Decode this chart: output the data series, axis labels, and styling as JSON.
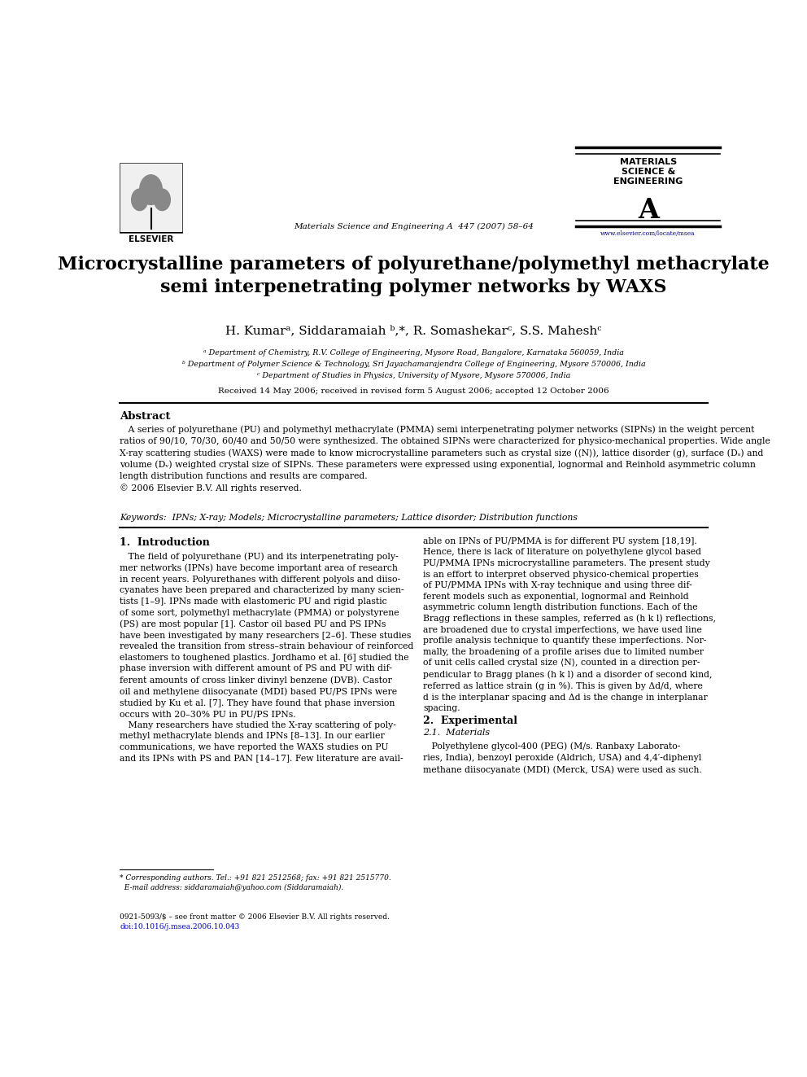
{
  "bg_color": "#ffffff",
  "page_width": 9.92,
  "page_height": 13.23,
  "title": "Microcrystalline parameters of polyurethane/polymethyl methacrylate\nsemi interpenetrating polymer networks by WAXS",
  "authors": "H. Kumarᵃ, Siddaramaiah ᵇ,*, R. Somashekarᶜ, S.S. Maheshᶜ",
  "affil_a": "ᵃ Department of Chemistry, R.V. College of Engineering, Mysore Road, Bangalore, Karnataka 560059, India",
  "affil_b": "ᵇ Department of Polymer Science & Technology, Sri Jayachamarajendra College of Engineering, Mysore 570006, India",
  "affil_c": "ᶜ Department of Studies in Physics, University of Mysore, Mysore 570006, India",
  "received": "Received 14 May 2006; received in revised form 5 August 2006; accepted 12 October 2006",
  "journal_ref": "Materials Science and Engineering A  447 (2007) 58–64",
  "elsevier_url": "www.elsevier.com/locate/msea",
  "abstract_title": "Abstract",
  "abstract_text": "   A series of polyurethane (PU) and polymethyl methacrylate (PMMA) semi interpenetrating polymer networks (SIPNs) in the weight percent\nratios of 90/10, 70/30, 60/40 and 50/50 were synthesized. The obtained SIPNs were characterized for physico-mechanical properties. Wide angle\nX-ray scattering studies (WAXS) were made to know microcrystalline parameters such as crystal size (⟨N⟩), lattice disorder (g), surface (Dₛ) and\nvolume (Dᵥ) weighted crystal size of SIPNs. These parameters were expressed using exponential, lognormal and Reinhold asymmetric column\nlength distribution functions and results are compared.\n© 2006 Elsevier B.V. All rights reserved.",
  "keywords": "Keywords:  IPNs; X-ray; Models; Microcrystalline parameters; Lattice disorder; Distribution functions",
  "section1_title": "1.  Introduction",
  "section1_left": "   The field of polyurethane (PU) and its interpenetrating poly-\nmer networks (IPNs) have become important area of research\nin recent years. Polyurethanes with different polyols and diiso-\ncyanates have been prepared and characterized by many scien-\ntists [1–9]. IPNs made with elastomeric PU and rigid plastic\nof some sort, polymethyl methacrylate (PMMA) or polystyrene\n(PS) are most popular [1]. Castor oil based PU and PS IPNs\nhave been investigated by many researchers [2–6]. These studies\nrevealed the transition from stress–strain behaviour of reinforced\nelastomers to toughened plastics. Jordhamo et al. [6] studied the\nphase inversion with different amount of PS and PU with dif-\nferent amounts of cross linker divinyl benzene (DVB). Castor\noil and methylene diisocyanate (MDI) based PU/PS IPNs were\nstudied by Ku et al. [7]. They have found that phase inversion\noccurs with 20–30% PU in PU/PS IPNs.\n   Many researchers have studied the X-ray scattering of poly-\nmethyl methacrylate blends and IPNs [8–13]. In our earlier\ncommunications, we have reported the WAXS studies on PU\nand its IPNs with PS and PAN [14–17]. Few literature are avail-",
  "section1_right": "able on IPNs of PU/PMMA is for different PU system [18,19].\nHence, there is lack of literature on polyethylene glycol based\nPU/PMMA IPNs microcrystalline parameters. The present study\nis an effort to interpret observed physico-chemical properties\nof PU/PMMA IPNs with X-ray technique and using three dif-\nferent models such as exponential, lognormal and Reinhold\nasymmetric column length distribution functions. Each of the\nBragg reflections in these samples, referred as (h k l) reflections,\nare broadened due to crystal imperfections, we have used line\nprofile analysis technique to quantify these imperfections. Nor-\nmally, the broadening of a profile arises due to limited number\nof unit cells called crystal size ⟨N⟩, counted in a direction per-\npendicular to Bragg planes (h k l) and a disorder of second kind,\nreferred as lattice strain (g in %). This is given by Δd/d, where\nd is the interplanar spacing and Δd is the change in interplanar\nspacing.",
  "section2_title": "2.  Experimental",
  "section21_title": "2.1.  Materials",
  "section21_text": "   Polyethylene glycol-400 (PEG) (M/s. Ranbaxy Laborato-\nries, India), benzoyl peroxide (Aldrich, USA) and 4,4′-diphenyl\nmethane diisocyanate (MDI) (Merck, USA) were used as such.",
  "footnote_star": "* Corresponding authors. Tel.: +91 821 2512568; fax: +91 821 2515770.\n  E-mail address: siddaramaiah@yahoo.com (Siddaramaiah).",
  "footer_line1": "0921-5093/$ – see front matter © 2006 Elsevier B.V. All rights reserved.",
  "footer_line2": "doi:10.1016/j.msea.2006.10.043"
}
